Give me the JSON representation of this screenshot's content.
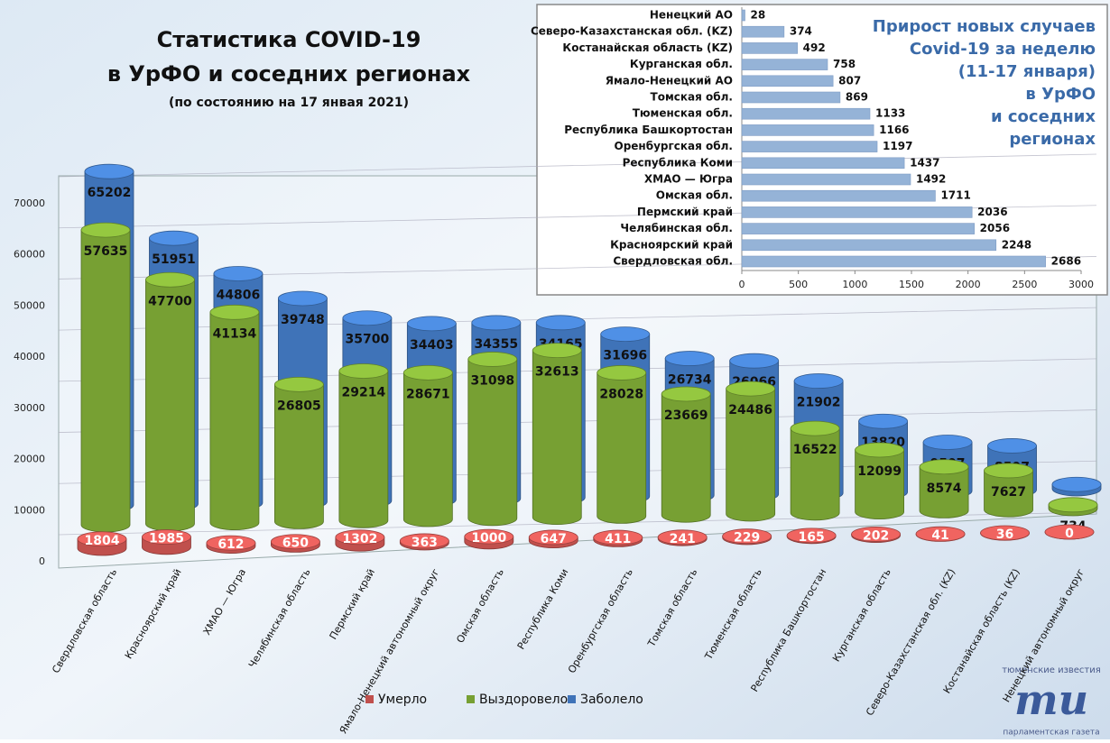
{
  "chart_data": [
    {
      "type": "cylinder-bar",
      "title": [
        "Статистика COVID-19",
        "в УрФО и соседних регионах"
      ],
      "subtitle": "(по состоянию на 17 янвая 2021)",
      "categories": [
        "Свердловская область",
        "Красноярский край",
        "ХМАО — Югра",
        "Челябинская область",
        "Пермский край",
        "Ямало-Ненецкий автономный округ",
        "Омская область",
        "Республика Коми",
        "Оренбургская область",
        "Томская область",
        "Тюменская область",
        "Республика Башкортостан",
        "Курганская область",
        "Северо-Казахстанская обл. (KZ)",
        "Костанайская область (KZ)",
        "Ненецкий автономный округ"
      ],
      "series": [
        {
          "name": "Умерло",
          "color": "#c0504d",
          "values": [
            1804,
            1985,
            612,
            650,
            1302,
            363,
            1000,
            647,
            411,
            241,
            229,
            165,
            202,
            41,
            36,
            0
          ]
        },
        {
          "name": "Выздоровело",
          "color": "#77a033",
          "values": [
            57635,
            47700,
            41134,
            26805,
            29214,
            28671,
            31098,
            32613,
            28028,
            23669,
            24486,
            16522,
            12099,
            8574,
            7627,
            734
          ]
        },
        {
          "name": "Заболело",
          "color": "#3f73b8",
          "values": [
            65202,
            51951,
            44806,
            39748,
            35700,
            34403,
            34355,
            34165,
            31696,
            26734,
            26066,
            21902,
            13820,
            9507,
            8597,
            843
          ]
        }
      ],
      "ylim": [
        0,
        70000
      ],
      "yticks": [
        0,
        10000,
        20000,
        30000,
        40000,
        50000,
        60000,
        70000
      ],
      "grid": true,
      "legend": "bottom"
    },
    {
      "type": "hbar",
      "title": [
        "Прирост новых случаев",
        "Covid-19 за неделю",
        "(11-17 января)",
        "в УрФО",
        "и соседних",
        "регионах"
      ],
      "categories": [
        "Ненецкий АО",
        "Северо-Казахстанская обл. (KZ)",
        "Костанайская область (KZ)",
        "Курганская обл.",
        "Ямало-Ненецкий АО",
        "Томская обл.",
        "Тюменская обл.",
        "Республика Башкортостан",
        "Оренбургская обл.",
        "Республика Коми",
        "ХМАО — Югра",
        "Омская обл.",
        "Пермский край",
        "Челябинская обл.",
        "Красноярский край",
        "Свердловская обл."
      ],
      "values": [
        28,
        374,
        492,
        758,
        807,
        869,
        1133,
        1166,
        1197,
        1437,
        1492,
        1711,
        2036,
        2056,
        2248,
        2686
      ],
      "color": "#95b3d7",
      "xlim": [
        0,
        3000
      ],
      "xticks": [
        0,
        500,
        1000,
        1500,
        2000,
        2500,
        3000
      ]
    }
  ],
  "logo": {
    "top": "тюменские известия",
    "mark": "ти",
    "bottom": "парламентская газета"
  }
}
